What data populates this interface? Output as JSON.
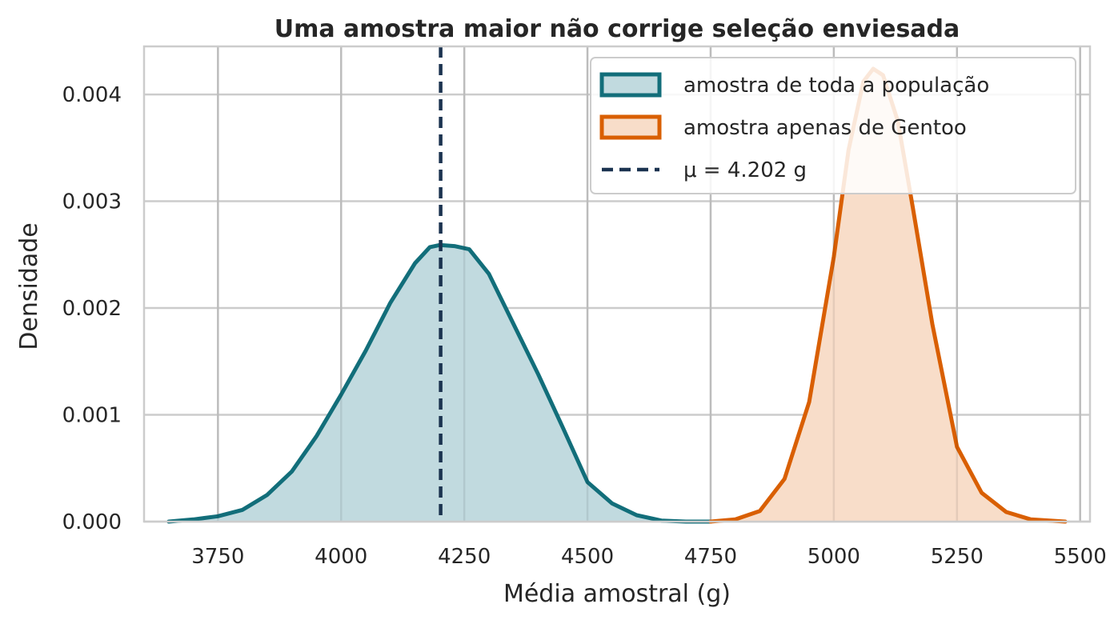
{
  "chart_data": {
    "type": "area",
    "title": "Uma amostra maior não corrige seleção enviesada",
    "xlabel": "Média amostral (g)",
    "ylabel": "Densidade",
    "xlim": [
      3600,
      5520
    ],
    "ylim": [
      0,
      0.00445
    ],
    "xticks": [
      3750,
      4000,
      4250,
      4500,
      4750,
      5000,
      5250,
      5500
    ],
    "xtick_labels": [
      "3750",
      "4000",
      "4250",
      "4500",
      "4750",
      "5000",
      "5250",
      "5500"
    ],
    "yticks": [
      0,
      0.001,
      0.002,
      0.003,
      0.004
    ],
    "ytick_labels": [
      "0.000",
      "0.001",
      "0.002",
      "0.003",
      "0.004"
    ],
    "grid": true,
    "legend_position": "top-right",
    "series": [
      {
        "name": "amostra de toda a população",
        "color": "#126e7a",
        "fill": "#c1dadf",
        "x": [
          3650,
          3700,
          3750,
          3800,
          3850,
          3900,
          3950,
          4000,
          4050,
          4100,
          4150,
          4180,
          4200,
          4230,
          4260,
          4300,
          4350,
          4400,
          4450,
          4500,
          4550,
          4600,
          4650,
          4700,
          4750
        ],
        "y": [
          0.0,
          2e-05,
          5e-05,
          0.00011,
          0.00025,
          0.00047,
          0.0008,
          0.00119,
          0.0016,
          0.00205,
          0.00242,
          0.00257,
          0.00259,
          0.00258,
          0.00255,
          0.00232,
          0.00185,
          0.00138,
          0.00088,
          0.00037,
          0.00017,
          6e-05,
          1e-05,
          0.0,
          0.0
        ]
      },
      {
        "name": "amostra apenas de Gentoo",
        "color": "#d95f02",
        "fill": "#f8ddc9",
        "x": [
          4750,
          4800,
          4850,
          4900,
          4950,
          5000,
          5030,
          5060,
          5080,
          5100,
          5130,
          5160,
          5200,
          5250,
          5300,
          5350,
          5400,
          5470
        ],
        "y": [
          0.0,
          2e-05,
          0.0001,
          0.0004,
          0.00112,
          0.00248,
          0.00348,
          0.00412,
          0.00424,
          0.00418,
          0.00375,
          0.00295,
          0.00185,
          0.0007,
          0.00027,
          9e-05,
          2e-05,
          0.0
        ]
      }
    ],
    "reference_line": {
      "name": "μ = 4.202 g",
      "x": 4202,
      "color": "#1b3350",
      "style": "dashed"
    }
  }
}
